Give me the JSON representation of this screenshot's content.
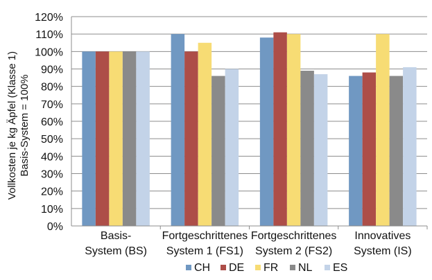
{
  "chart_data": {
    "type": "bar",
    "ylabel_lines": [
      "Vollkosten je kg Äpfel (Klasse 1)",
      "Basis-System = 100%"
    ],
    "categories": [
      [
        "Basis-",
        "System (BS)"
      ],
      [
        "Fortgeschrittenes",
        "System 1 (FS1)"
      ],
      [
        "Fortgeschrittenes",
        "System 2 (FS2)"
      ],
      [
        "Innovatives",
        "System (IS)"
      ]
    ],
    "series": [
      {
        "name": "CH",
        "color": "#7098c2",
        "values": [
          100,
          110,
          108,
          86
        ]
      },
      {
        "name": "DE",
        "color": "#ad4e48",
        "values": [
          100,
          100,
          111,
          88
        ]
      },
      {
        "name": "FR",
        "color": "#f7dc74",
        "values": [
          100,
          105,
          110,
          110
        ]
      },
      {
        "name": "NL",
        "color": "#8a8a8a",
        "values": [
          100,
          86,
          89,
          86
        ]
      },
      {
        "name": "ES",
        "color": "#c3d3e8",
        "values": [
          100,
          90,
          87,
          91
        ]
      }
    ],
    "yticks": [
      "0%",
      "10%",
      "20%",
      "30%",
      "40%",
      "50%",
      "60%",
      "70%",
      "80%",
      "90%",
      "100%",
      "110%",
      "120%"
    ],
    "ylim": [
      0,
      120
    ],
    "grid": true,
    "legend_position": "bottom"
  }
}
